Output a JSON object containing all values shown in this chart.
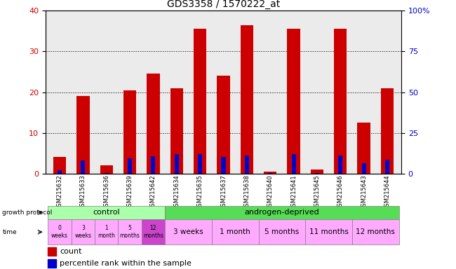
{
  "title": "GDS3358 / 1570222_at",
  "samples": [
    "GSM215632",
    "GSM215633",
    "GSM215636",
    "GSM215639",
    "GSM215642",
    "GSM215634",
    "GSM215635",
    "GSM215637",
    "GSM215638",
    "GSM215640",
    "GSM215641",
    "GSM215645",
    "GSM215646",
    "GSM215643",
    "GSM215644"
  ],
  "count_values": [
    4,
    19,
    2,
    20.5,
    24.5,
    21,
    35.5,
    24,
    36.5,
    0.5,
    35.5,
    1,
    35.5,
    12.5,
    21
  ],
  "percentile_values": [
    2,
    8,
    0.5,
    9.5,
    10.5,
    12,
    12,
    10,
    11,
    0.5,
    12,
    0.5,
    11,
    6.5,
    8.5
  ],
  "count_color": "#cc0000",
  "percentile_color": "#0000cc",
  "ylim_left": [
    0,
    40
  ],
  "ylim_right": [
    0,
    100
  ],
  "yticks_left": [
    0,
    10,
    20,
    30,
    40
  ],
  "yticks_right": [
    0,
    25,
    50,
    75,
    100
  ],
  "ytick_labels_right": [
    "0",
    "25",
    "50",
    "75",
    "100%"
  ],
  "bg_color": "#ffffff",
  "plot_bg": "#ebebeb",
  "control_color": "#aaffaa",
  "androgen_color": "#55dd55",
  "time_color_light": "#ffaaff",
  "time_color_dark": "#cc44cc",
  "control_label": "control",
  "androgen_label": "androgen-deprived",
  "growth_protocol_label": "growth protocol",
  "time_label": "time",
  "time_texts_ctrl": [
    "0\nweeks",
    "3\nweeks",
    "1\nmonth",
    "5\nmonths",
    "12\nmonths"
  ],
  "time_groups_and": [
    [
      5,
      6,
      "3 weeks"
    ],
    [
      7,
      8,
      "1 month"
    ],
    [
      9,
      10,
      "5 months"
    ],
    [
      11,
      12,
      "11 months"
    ],
    [
      13,
      14,
      "12 months"
    ]
  ],
  "legend_count": "count",
  "legend_percentile": "percentile rank within the sample"
}
